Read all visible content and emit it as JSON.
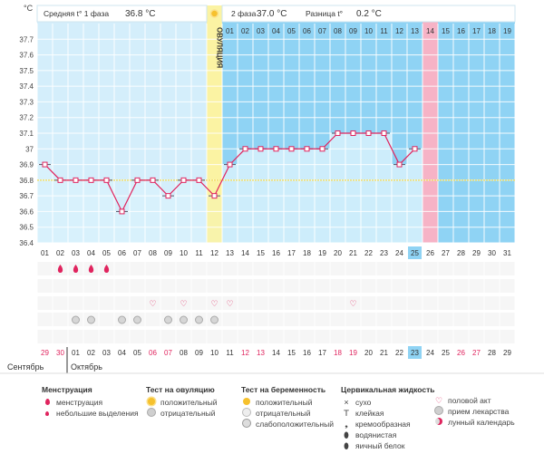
{
  "header": {
    "phase1_label": "Средняя t° 1 фаза",
    "phase1_value": "36.8 °C",
    "phase2_label": "2 фаза",
    "phase2_value": "37.0 °C",
    "diff_label": "Разница t°",
    "diff_value": "0.2 °C",
    "ovulation_label": "ОВУЛЯЦИЯ",
    "unit": "°C"
  },
  "chart_data": {
    "type": "line",
    "ylim": [
      36.4,
      37.8
    ],
    "yticks": [
      "37.7",
      "37.6",
      "37.5",
      "37.4",
      "37.3",
      "37.2",
      "37.1",
      "37",
      "36.9",
      "36.8",
      "36.7",
      "36.6",
      "36.5",
      "36.4"
    ],
    "coverline": 36.8,
    "cycle_days": [
      "01",
      "02",
      "03",
      "04",
      "05",
      "06",
      "07",
      "08",
      "09",
      "10",
      "11",
      "12",
      "13",
      "14",
      "15",
      "16",
      "17",
      "18",
      "19",
      "20",
      "21",
      "22",
      "23",
      "24",
      "25",
      "26",
      "27",
      "28",
      "29",
      "30",
      "31"
    ],
    "temperatures": [
      36.9,
      36.8,
      36.8,
      36.8,
      36.8,
      36.6,
      36.8,
      36.8,
      36.7,
      36.8,
      36.8,
      36.7,
      36.9,
      37.0,
      37.0,
      37.0,
      37.0,
      37.0,
      37.0,
      37.1,
      37.1,
      37.1,
      37.1,
      36.9,
      37.0,
      null,
      null,
      null,
      null,
      null,
      null
    ],
    "ovulation_day": 12,
    "current_day": 25,
    "phase2_numbers": [
      "01",
      "02",
      "03",
      "04",
      "05",
      "06",
      "07",
      "08",
      "09",
      "10",
      "11",
      "12",
      "13",
      "14",
      "15",
      "16",
      "17",
      "18",
      "19"
    ],
    "phase2_highlight": 14,
    "dates": [
      "29",
      "30",
      "01",
      "02",
      "03",
      "04",
      "05",
      "06",
      "07",
      "08",
      "09",
      "10",
      "11",
      "12",
      "13",
      "14",
      "15",
      "16",
      "17",
      "18",
      "19",
      "20",
      "21",
      "22",
      "23",
      "24",
      "25",
      "26",
      "27",
      "28",
      "29"
    ],
    "date_red_flags": [
      1,
      1,
      0,
      0,
      0,
      0,
      0,
      1,
      1,
      0,
      0,
      0,
      0,
      1,
      1,
      0,
      0,
      0,
      0,
      1,
      1,
      0,
      0,
      0,
      0,
      0,
      0,
      1,
      1,
      0,
      0
    ],
    "months": [
      "Сентябрь",
      "Октябрь"
    ],
    "menstruation_days": [
      2,
      3,
      4,
      5
    ],
    "heart_days": [
      8,
      10,
      12,
      13,
      21
    ],
    "pill_days": [
      3,
      4,
      6,
      7,
      9,
      10,
      11,
      12
    ]
  },
  "legend": {
    "menstruation": {
      "title": "Менструация",
      "items": [
        "менструация",
        "небольшие выделения"
      ]
    },
    "ovulation_test": {
      "title": "Тест на овуляцию",
      "items": [
        "положительный",
        "отрицательный"
      ]
    },
    "pregnancy_test": {
      "title": "Тест на беременность",
      "items": [
        "положительный",
        "отрицательный",
        "слабоположительный"
      ]
    },
    "cervical": {
      "title": "Цервикальная жидкость",
      "items": [
        "сухо",
        "клейкая",
        "кремообразная",
        "водянистая",
        "яичный белок"
      ]
    },
    "other": {
      "items": [
        "половой акт",
        "прием лекарства",
        "лунный календарь"
      ]
    }
  },
  "colors": {
    "phase1": "#d4eefb",
    "phase2": "#8fd3f4",
    "line": "#e0245e",
    "ovulation": "#fbf3a3",
    "highlight": "#f6b3c6",
    "coverline": "#f2e06b"
  }
}
